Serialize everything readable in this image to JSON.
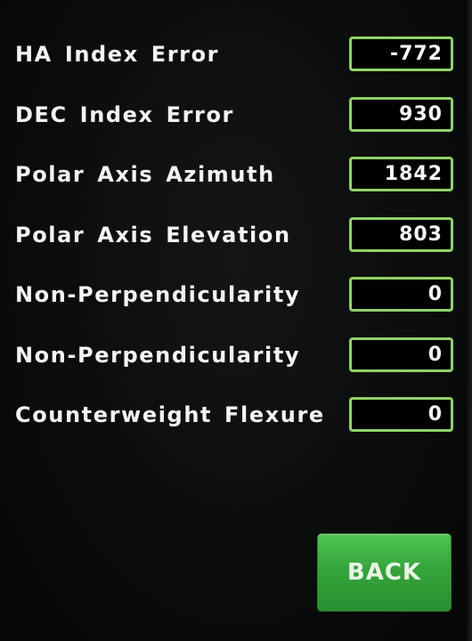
{
  "params": [
    {
      "label": "HA Index Error",
      "value": "-772"
    },
    {
      "label": "DEC Index Error",
      "value": "930"
    },
    {
      "label": "Polar Axis Azimuth",
      "value": "1842"
    },
    {
      "label": "Polar Axis Elevation",
      "value": "803"
    },
    {
      "label": "Non-Perpendicularity",
      "value": "0"
    },
    {
      "label": "Non-Perpendicularity",
      "value": "0"
    },
    {
      "label": "Counterweight Flexure",
      "value": "0"
    }
  ],
  "back_button": {
    "label": "BACK"
  },
  "colors": {
    "background": "#0b0d0c",
    "field_border": "#8fd36a",
    "button_green": "#35a53b",
    "text": "#f4f4f4"
  }
}
